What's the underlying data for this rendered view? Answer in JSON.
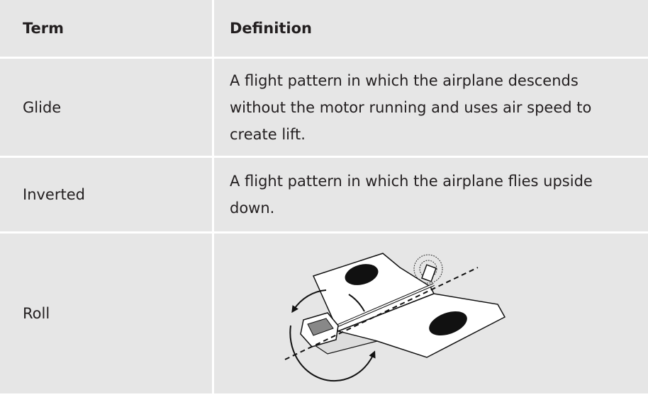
{
  "table": {
    "header": {
      "term": "Term",
      "definition": "Definition"
    },
    "rows": [
      {
        "term": "Glide",
        "definition": "A flight pattern in which the airplane descends without the motor running and uses air speed to create lift."
      },
      {
        "term": "Inverted",
        "definition": "A flight pattern in which the airplane flies upside down."
      },
      {
        "term": "Roll"
      }
    ]
  }
}
